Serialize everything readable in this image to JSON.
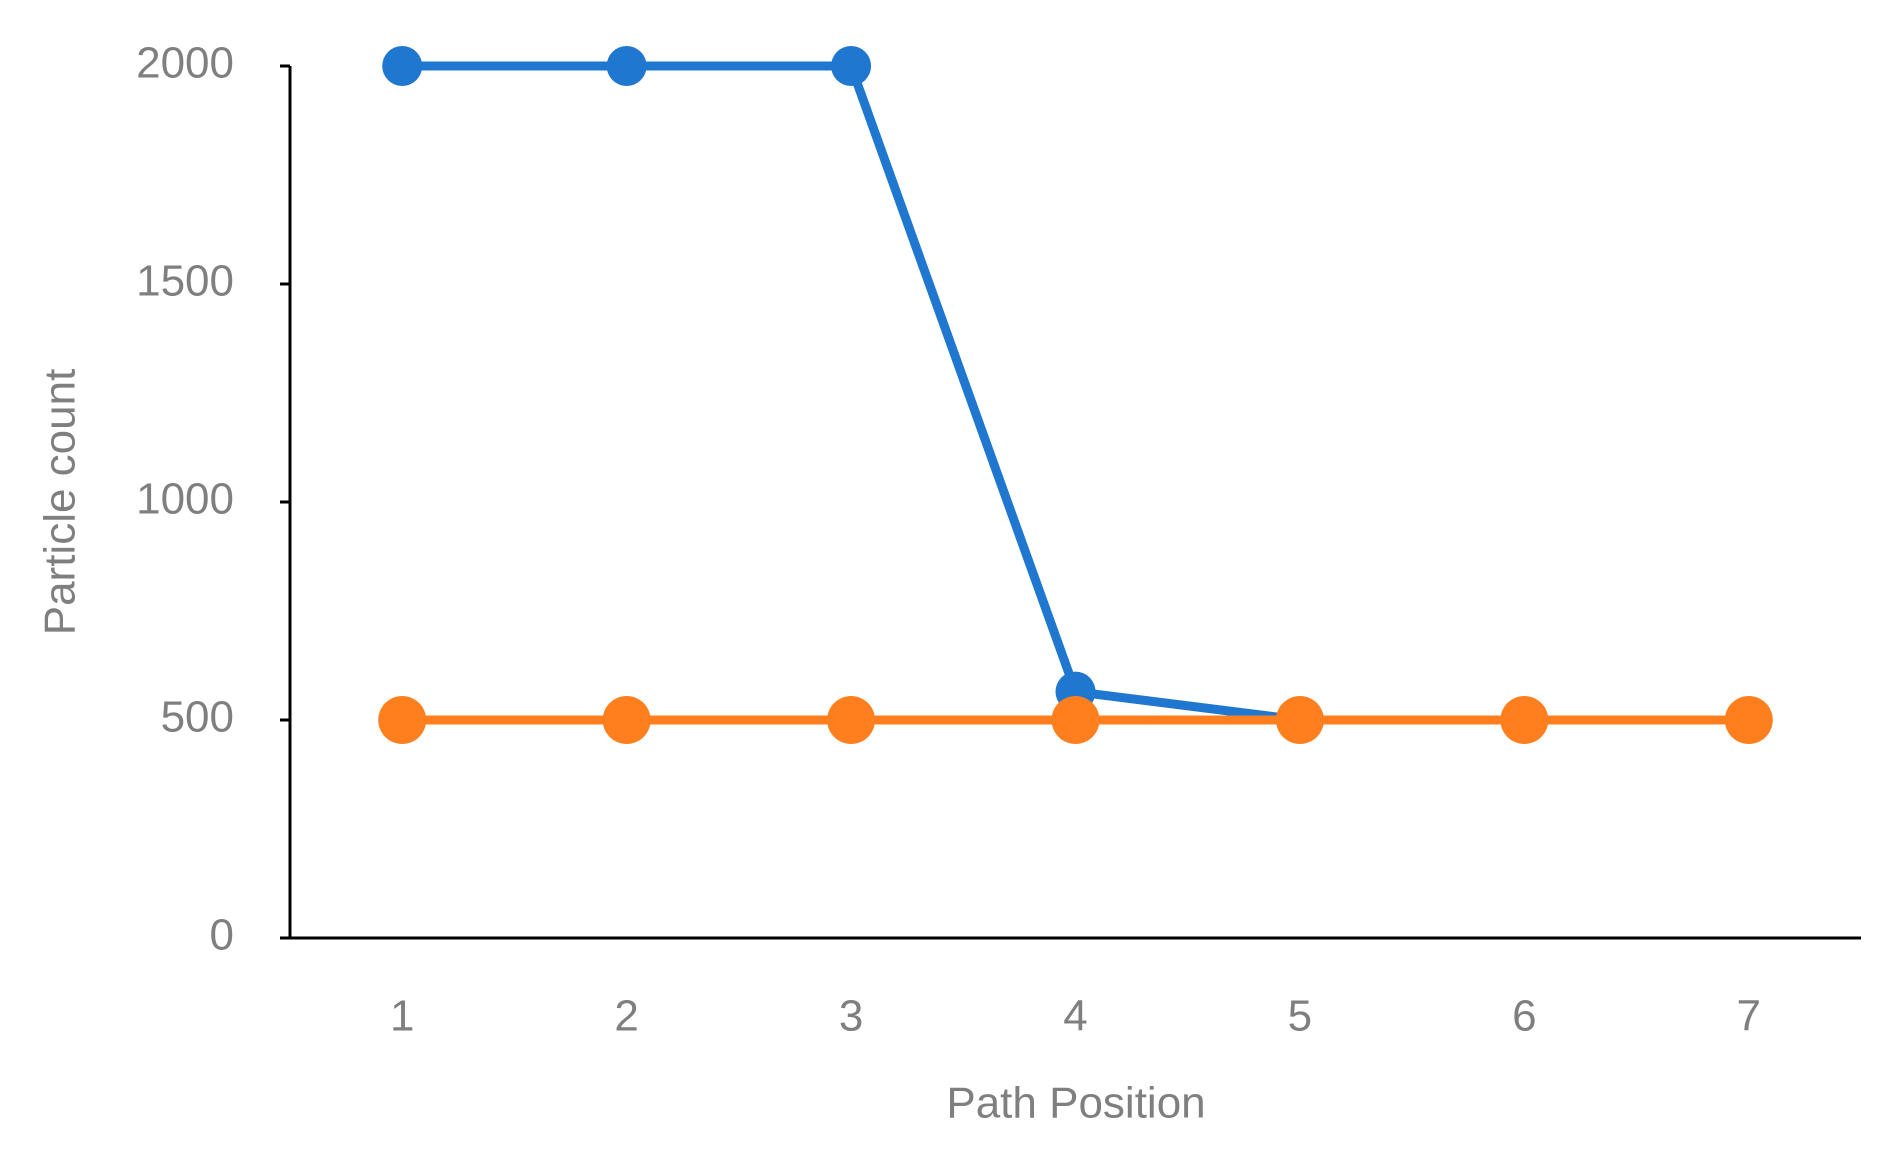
{
  "chart_data": {
    "type": "line",
    "x_label": "Path Position",
    "y_label": "Particle count",
    "categories": [
      "1",
      "2",
      "3",
      "4",
      "5",
      "6",
      "7"
    ],
    "series": [
      {
        "color": "#1f77d0",
        "values": [
          2000,
          2000,
          2000,
          565,
          500,
          500,
          500
        ]
      },
      {
        "color": "#ff7f1e",
        "values": [
          500,
          500,
          500,
          500,
          500,
          500,
          500
        ]
      }
    ],
    "ylim": [
      0,
      2000
    ],
    "yticks": [
      0,
      500,
      1000,
      1500,
      2000
    ],
    "grid": false
  }
}
